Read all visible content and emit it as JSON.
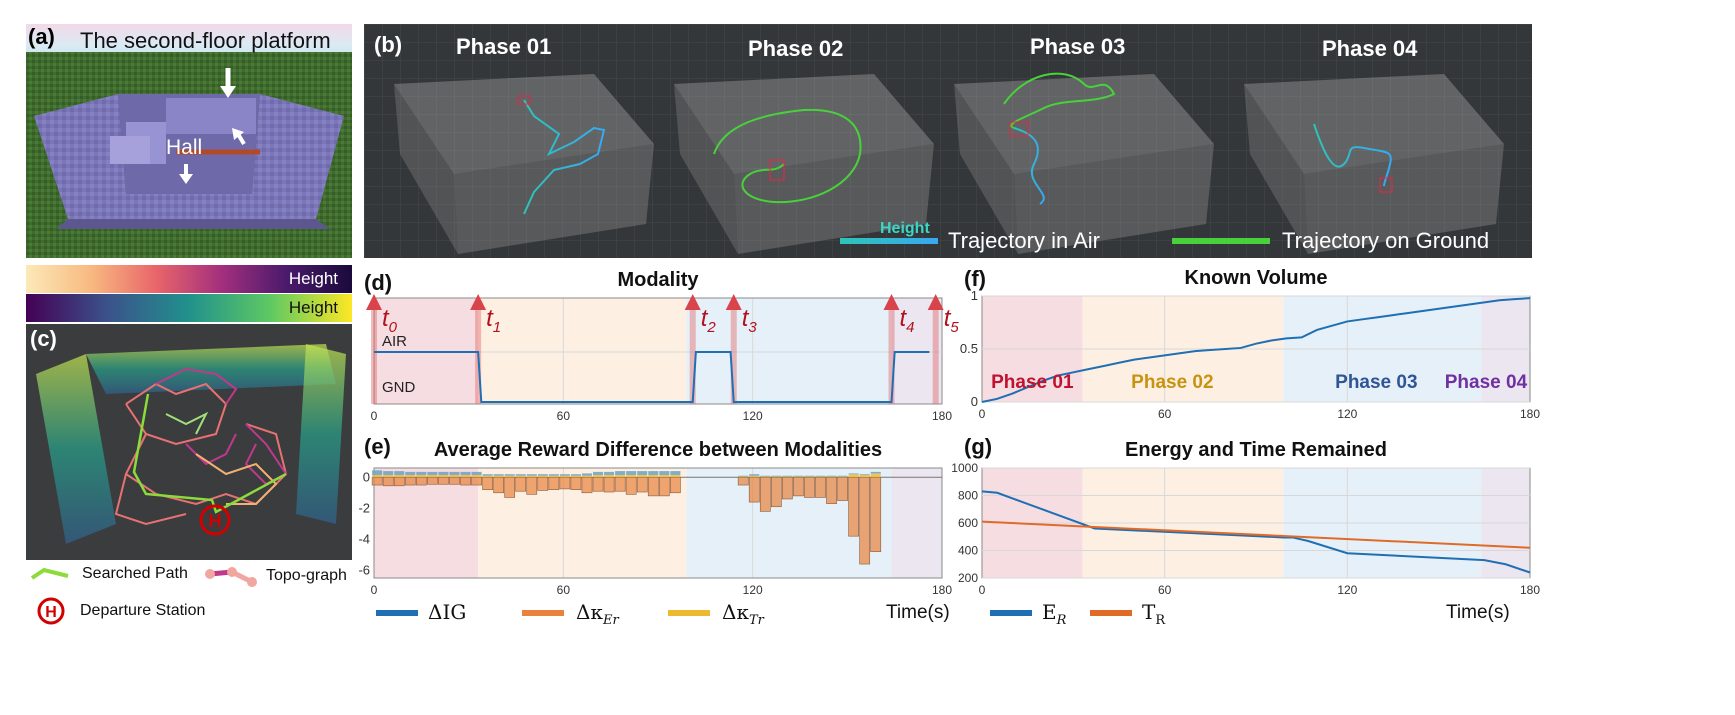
{
  "panel_a": {
    "label": "(a)",
    "title": "The second-floor platform",
    "hall_label": "Hall"
  },
  "panel_b": {
    "label": "(b)",
    "phases": [
      "Phase 01",
      "Phase 02",
      "Phase 03",
      "Phase 04"
    ],
    "height_label": "Height",
    "legend_air": "Trajectory in Air",
    "legend_ground": "Trajectory on Ground",
    "colors": {
      "air_start": "#2ec4b6",
      "air_end": "#38a8f0",
      "ground": "#49d13b"
    }
  },
  "panel_c": {
    "label": "(c)",
    "colorbar_top_label": "Height",
    "colorbar_bottom_label": "Height",
    "station_symbol": "H",
    "legend": {
      "searched_path": "Searched Path",
      "topo_graph": "Topo-graph",
      "departure_station": "Departure Station"
    },
    "colors": {
      "searched_path": "#8bdc3a",
      "topo_graph": "#c0398b",
      "station": "#d40000"
    }
  },
  "phase_colors": {
    "phase01": "#f6dde2",
    "phase02": "#fdf0e3",
    "phase03": "#e6f0f8",
    "phase04": "#ece6f1"
  },
  "chart_data": [
    {
      "id": "d",
      "type": "line",
      "label": "(d)",
      "title": "Modality",
      "xlim": [
        0,
        180
      ],
      "xticks": [
        0,
        60,
        120,
        180
      ],
      "yticks": [
        "AIR",
        "GND"
      ],
      "phase_bounds": [
        0,
        33,
        99,
        164,
        180
      ],
      "markers": [
        {
          "t": 0,
          "label": "t",
          "sub": "0"
        },
        {
          "t": 33,
          "label": "t",
          "sub": "1"
        },
        {
          "t": 101,
          "label": "t",
          "sub": "2"
        },
        {
          "t": 114,
          "label": "t",
          "sub": "3"
        },
        {
          "t": 164,
          "label": "t",
          "sub": "4"
        },
        {
          "t": 178,
          "label": "t",
          "sub": "5"
        }
      ],
      "x": [
        0,
        33,
        34,
        101,
        102,
        113,
        114,
        164,
        165,
        176
      ],
      "y": [
        1,
        1,
        0,
        0,
        1,
        1,
        0,
        0,
        1,
        1
      ],
      "line_color": "#1f6fb4"
    },
    {
      "id": "e",
      "type": "bar",
      "label": "(e)",
      "title": "Average Reward Difference between Modalities",
      "xlim": [
        0,
        180
      ],
      "xticks": [
        0,
        60,
        120,
        180
      ],
      "ylim": [
        -6.5,
        0.6
      ],
      "yticks": [
        0,
        -2,
        -4,
        -6
      ],
      "xlabel": "Time(s)",
      "phase_bounds": [
        0,
        33,
        99,
        164,
        180
      ],
      "x": [
        1,
        4.5,
        8,
        11.5,
        15,
        18.5,
        22,
        25.5,
        29,
        32.5,
        36,
        39.5,
        43,
        46.5,
        50,
        53.5,
        57,
        60.5,
        64,
        67.5,
        71,
        74.5,
        78,
        81.5,
        85,
        88.5,
        92,
        95.5,
        117,
        120.5,
        124,
        127.5,
        131,
        134.5,
        138,
        141.5,
        145,
        148.5,
        152,
        155.5,
        159
      ],
      "series": [
        {
          "name": "ΔIG",
          "color": "#1f6fb4",
          "values": [
            0.3,
            0.25,
            0.25,
            0.2,
            0.2,
            0.2,
            0.2,
            0.2,
            0.2,
            0.2,
            0.1,
            0.1,
            0.1,
            0.1,
            0.1,
            0.1,
            0.1,
            0.1,
            0.1,
            0.15,
            0.2,
            0.2,
            0.25,
            0.25,
            0.25,
            0.25,
            0.25,
            0.25,
            0.05,
            0.1,
            0.05,
            0.05,
            0.05,
            0.05,
            0.05,
            0.05,
            0.05,
            0.05,
            0.05,
            0.05,
            0.1
          ]
        },
        {
          "name": "Δκ",
          "sub": "Er",
          "color": "#e8823c",
          "values": [
            -0.5,
            -0.55,
            -0.55,
            -0.5,
            -0.5,
            -0.45,
            -0.45,
            -0.45,
            -0.5,
            -0.5,
            -0.8,
            -1.0,
            -1.3,
            -0.9,
            -1.1,
            -0.85,
            -0.8,
            -0.75,
            -0.8,
            -1.0,
            -0.9,
            -0.95,
            -0.9,
            -1.1,
            -0.95,
            -1.2,
            -1.2,
            -1.0,
            -0.5,
            -1.6,
            -2.2,
            -1.9,
            -1.4,
            -1.2,
            -1.3,
            -1.3,
            -1.7,
            -1.5,
            -3.8,
            -5.6,
            -4.8
          ]
        },
        {
          "name": "Δκ",
          "sub": "Tr",
          "color": "#edb92f",
          "values": [
            0.15,
            0.15,
            0.15,
            0.15,
            0.15,
            0.15,
            0.15,
            0.15,
            0.15,
            0.15,
            0.1,
            0.1,
            0.1,
            0.1,
            0.1,
            0.1,
            0.1,
            0.1,
            0.1,
            0.1,
            0.15,
            0.15,
            0.15,
            0.15,
            0.15,
            0.15,
            0.15,
            0.15,
            0.05,
            0.1,
            0.05,
            0.05,
            0.05,
            0.05,
            0.05,
            0.05,
            0.05,
            0.05,
            0.2,
            0.15,
            0.25
          ]
        }
      ]
    },
    {
      "id": "f",
      "type": "line",
      "label": "(f)",
      "title": "Known Volume",
      "xlim": [
        0,
        180
      ],
      "ylim": [
        0,
        1
      ],
      "xticks": [
        0,
        60,
        120,
        180
      ],
      "yticks": [
        0,
        0.5,
        1
      ],
      "phase_bounds": [
        0,
        33,
        99,
        164,
        180
      ],
      "phase_labels": [
        "Phase 01",
        "Phase 02",
        "Phase 03",
        "Phase 04"
      ],
      "phase_label_colors": [
        "#c0122e",
        "#c8930e",
        "#2f5597",
        "#7030a0"
      ],
      "x": [
        0,
        5,
        10,
        15,
        20,
        25,
        30,
        35,
        40,
        45,
        50,
        55,
        60,
        65,
        70,
        75,
        80,
        85,
        90,
        95,
        100,
        105,
        110,
        115,
        120,
        125,
        130,
        135,
        140,
        145,
        150,
        155,
        160,
        165,
        170,
        175,
        180
      ],
      "y": [
        0.0,
        0.03,
        0.08,
        0.14,
        0.2,
        0.25,
        0.28,
        0.31,
        0.34,
        0.37,
        0.4,
        0.42,
        0.44,
        0.46,
        0.48,
        0.49,
        0.5,
        0.51,
        0.55,
        0.58,
        0.6,
        0.61,
        0.68,
        0.72,
        0.76,
        0.78,
        0.8,
        0.82,
        0.84,
        0.86,
        0.88,
        0.9,
        0.92,
        0.94,
        0.96,
        0.97,
        0.98
      ],
      "line_color": "#1f6fb4"
    },
    {
      "id": "g",
      "type": "line",
      "label": "(g)",
      "title": "Energy and Time Remained",
      "xlim": [
        0,
        180
      ],
      "ylim": [
        200,
        1000
      ],
      "xticks": [
        0,
        60,
        120,
        180
      ],
      "yticks": [
        200,
        400,
        600,
        800,
        1000
      ],
      "xlabel": "Time(s)",
      "phase_bounds": [
        0,
        33,
        99,
        164,
        180
      ],
      "series": [
        {
          "name": "E",
          "sub": "R",
          "color": "#1f6fb4",
          "x": [
            0,
            5,
            37,
            99,
            102,
            107,
            120,
            165,
            172,
            180
          ],
          "y": [
            830,
            820,
            560,
            495,
            495,
            470,
            380,
            330,
            300,
            240
          ]
        },
        {
          "name": "T",
          "sub": "R",
          "color": "#e06a28",
          "x": [
            0,
            180
          ],
          "y": [
            610,
            420
          ]
        }
      ]
    }
  ]
}
